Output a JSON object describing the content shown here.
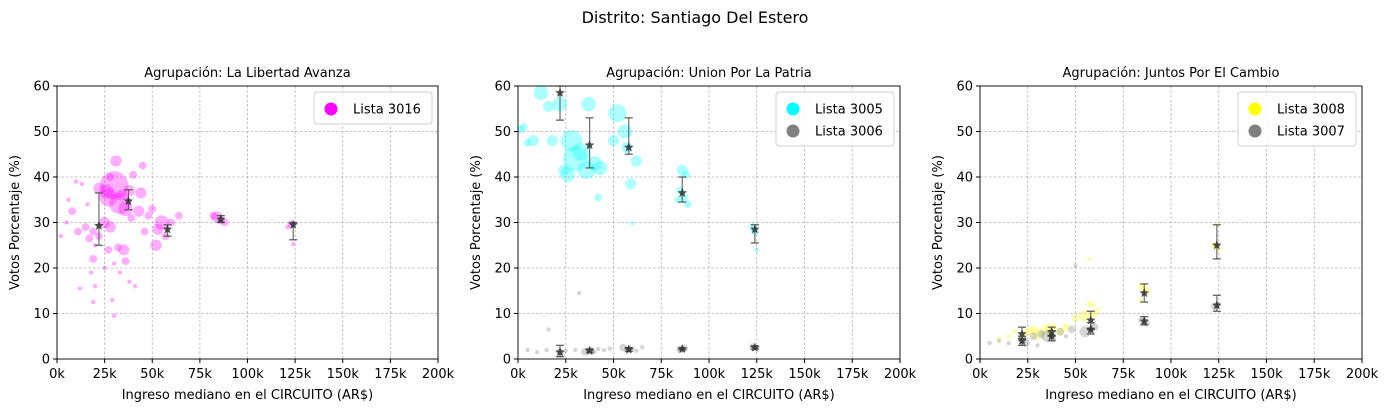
{
  "suptitle": "Distrito: Santiago Del Estero",
  "chart_data": [
    {
      "type": "scatter",
      "title": "Agrupación: La Libertad Avanza",
      "xlabel": "Ingreso mediano en el CIRCUITO (AR$)",
      "ylabel": "Votos Porcentaje (%)",
      "xlim": [
        0,
        200000
      ],
      "ylim": [
        0,
        60
      ],
      "xticks": [
        0,
        25000,
        50000,
        75000,
        100000,
        125000,
        150000,
        175000,
        200000
      ],
      "xticklabels": [
        "0k",
        "25k",
        "50k",
        "75k",
        "100k",
        "125k",
        "150k",
        "175k",
        "200k"
      ],
      "yticks": [
        0,
        10,
        20,
        30,
        40,
        50,
        60
      ],
      "grid": true,
      "legend_position": "top-right",
      "series": [
        {
          "name": "Lista 3016",
          "color": "#ff00ff",
          "points": [
            [
              22000,
              37.5,
              3
            ],
            [
              26000,
              36.8,
              4
            ],
            [
              30000,
              38.2,
              8
            ],
            [
              27000,
              35.5,
              5
            ],
            [
              33000,
              34.2,
              6
            ],
            [
              31000,
              43.5,
              3
            ],
            [
              45000,
              42.5,
              2
            ],
            [
              40000,
              40.5,
              2
            ],
            [
              28000,
              40,
              2
            ],
            [
              34000,
              36,
              3
            ],
            [
              38000,
              37,
              3
            ],
            [
              36000,
              33,
              4
            ],
            [
              44000,
              36.5,
              3
            ],
            [
              43000,
              32.5,
              3
            ],
            [
              39000,
              31,
              2
            ],
            [
              50000,
              33,
              2
            ],
            [
              48000,
              31.5,
              2
            ],
            [
              55000,
              30,
              4
            ],
            [
              53000,
              28.5,
              3
            ],
            [
              60000,
              30,
              2
            ],
            [
              64000,
              31.5,
              2
            ],
            [
              52000,
              25,
              3
            ],
            [
              57000,
              27,
              2
            ],
            [
              46000,
              28,
              2
            ],
            [
              25000,
              30,
              3
            ],
            [
              28000,
              29,
              3
            ],
            [
              19000,
              28,
              2
            ],
            [
              15000,
              29,
              2
            ],
            [
              22000,
              27,
              2
            ],
            [
              17000,
              26.5,
              2
            ],
            [
              20000,
              25,
              1
            ],
            [
              19000,
              22,
              2
            ],
            [
              27000,
              24,
              2
            ],
            [
              32000,
              24.5,
              2
            ],
            [
              35000,
              24,
              3
            ],
            [
              36000,
              21.5,
              2
            ],
            [
              33000,
              19,
              1
            ],
            [
              30000,
              21,
              1
            ],
            [
              25000,
              20,
              1
            ],
            [
              18000,
              19,
              1
            ],
            [
              20000,
              16,
              1
            ],
            [
              12000,
              15.5,
              1
            ],
            [
              19000,
              12.5,
              1
            ],
            [
              29000,
              13,
              1
            ],
            [
              30000,
              9.5,
              1
            ],
            [
              38000,
              17,
              1
            ],
            [
              41000,
              16,
              1
            ],
            [
              16000,
              34,
              1
            ],
            [
              10000,
              39,
              1
            ],
            [
              13000,
              38.5,
              1
            ],
            [
              6000,
              35,
              1
            ],
            [
              5000,
              30,
              1
            ],
            [
              8000,
              32.5,
              2
            ],
            [
              2000,
              27,
              1
            ],
            [
              11000,
              28,
              2
            ],
            [
              84000,
              31.2,
              3
            ],
            [
              86000,
              30.5,
              2
            ],
            [
              88000,
              30,
              2
            ],
            [
              82000,
              31.5,
              2
            ],
            [
              123000,
              29.6,
              2
            ],
            [
              124000,
              25.3,
              1
            ],
            [
              121000,
              29,
              1
            ]
          ]
        }
      ],
      "summary": [
        {
          "x": 22000,
          "y": 29.3,
          "lo": 25,
          "hi": 36.5
        },
        {
          "x": 37500,
          "y": 34.7,
          "lo": 32.8,
          "hi": 37.2
        },
        {
          "x": 58000,
          "y": 28.5,
          "lo": 27,
          "hi": 29.5
        },
        {
          "x": 86000,
          "y": 30.7,
          "lo": 30,
          "hi": 31.5
        },
        {
          "x": 124000,
          "y": 29.5,
          "lo": 26.2,
          "hi": 30
        }
      ]
    },
    {
      "type": "scatter",
      "title": "Agrupación: Union Por La Patria",
      "xlabel": "Ingreso mediano en el CIRCUITO (AR$)",
      "ylabel": "Votos Porcentaje (%)",
      "xlim": [
        0,
        200000
      ],
      "ylim": [
        0,
        60
      ],
      "xticks": [
        0,
        25000,
        50000,
        75000,
        100000,
        125000,
        150000,
        175000,
        200000
      ],
      "xticklabels": [
        "0k",
        "25k",
        "50k",
        "75k",
        "100k",
        "125k",
        "150k",
        "175k",
        "200k"
      ],
      "yticks": [
        0,
        10,
        20,
        30,
        40,
        50,
        60
      ],
      "grid": true,
      "legend_position": "top-right",
      "series": [
        {
          "name": "Lista 3005",
          "color": "#00ffff",
          "points": [
            [
              12000,
              58.5,
              4
            ],
            [
              16000,
              55.5,
              3
            ],
            [
              22000,
              56,
              4
            ],
            [
              28000,
              48,
              6
            ],
            [
              30000,
              44,
              7
            ],
            [
              33000,
              45.5,
              5
            ],
            [
              36000,
              41.5,
              5
            ],
            [
              40000,
              43,
              4
            ],
            [
              26000,
              40.5,
              4
            ],
            [
              24000,
              41.5,
              3
            ],
            [
              43000,
              42,
              4
            ],
            [
              37000,
              56,
              4
            ],
            [
              52000,
              54,
              5
            ],
            [
              56000,
              50,
              4
            ],
            [
              50000,
              48,
              3
            ],
            [
              57000,
              46.5,
              3
            ],
            [
              62000,
              43.5,
              3
            ],
            [
              59000,
              38.5,
              3
            ],
            [
              8000,
              48,
              3
            ],
            [
              5000,
              47.5,
              2
            ],
            [
              3000,
              51,
              2
            ],
            [
              1000,
              50.5,
              2
            ],
            [
              18000,
              48,
              3
            ],
            [
              42000,
              35.5,
              2
            ],
            [
              85000,
              37,
              2
            ],
            [
              87000,
              35.5,
              2
            ],
            [
              86000,
              41.5,
              3
            ],
            [
              89000,
              34,
              2
            ],
            [
              84000,
              35,
              2
            ],
            [
              88000,
              40.5,
              2
            ],
            [
              123000,
              29,
              2
            ],
            [
              124000,
              28,
              2
            ],
            [
              125000,
              24,
              1
            ],
            [
              60000,
              29.8,
              1
            ]
          ]
        },
        {
          "name": "Lista 3006",
          "color": "#808080",
          "points": [
            [
              22000,
              1.5,
              2
            ],
            [
              25000,
              1.8,
              1
            ],
            [
              30000,
              2,
              1
            ],
            [
              35000,
              1.6,
              2
            ],
            [
              38000,
              1.8,
              2
            ],
            [
              40000,
              1.5,
              1
            ],
            [
              42000,
              2.2,
              1
            ],
            [
              45000,
              1.9,
              1
            ],
            [
              48000,
              2.3,
              1
            ],
            [
              55000,
              2.5,
              2
            ],
            [
              58000,
              2.1,
              2
            ],
            [
              60000,
              2.2,
              1
            ],
            [
              62000,
              1.8,
              1
            ],
            [
              65000,
              2.6,
              1
            ],
            [
              85000,
              2.1,
              2
            ],
            [
              87000,
              2.3,
              2
            ],
            [
              123000,
              2.6,
              2
            ],
            [
              125000,
              2.4,
              1
            ],
            [
              15000,
              2,
              1
            ],
            [
              10000,
              1.5,
              1
            ],
            [
              5000,
              2,
              1
            ],
            [
              32000,
              14.5,
              1
            ],
            [
              16000,
              6.5,
              1
            ]
          ]
        }
      ],
      "summary": [
        {
          "x": 22000,
          "y": 58.5,
          "lo": 52.5,
          "hi": 60
        },
        {
          "x": 37500,
          "y": 47,
          "lo": 42,
          "hi": 53
        },
        {
          "x": 58000,
          "y": 46.5,
          "lo": 45,
          "hi": 53
        },
        {
          "x": 86000,
          "y": 36.5,
          "lo": 34.5,
          "hi": 40
        },
        {
          "x": 124000,
          "y": 28.5,
          "lo": 25.5,
          "hi": 29.5
        },
        {
          "x": 22000,
          "y": 1.5,
          "lo": 0.5,
          "hi": 3
        },
        {
          "x": 37500,
          "y": 1.8,
          "lo": 1.5,
          "hi": 2.2
        },
        {
          "x": 58000,
          "y": 2.1,
          "lo": 1.7,
          "hi": 2.5
        },
        {
          "x": 86000,
          "y": 2.2,
          "lo": 2,
          "hi": 2.4
        },
        {
          "x": 124000,
          "y": 2.5,
          "lo": 2.2,
          "hi": 2.9
        }
      ]
    },
    {
      "type": "scatter",
      "title": "Agrupación: Juntos Por El Cambio",
      "xlabel": "Ingreso mediano en el CIRCUITO (AR$)",
      "ylabel": "Votos Porcentaje (%)",
      "xlim": [
        0,
        200000
      ],
      "ylim": [
        0,
        60
      ],
      "xticks": [
        0,
        25000,
        50000,
        75000,
        100000,
        125000,
        150000,
        175000,
        200000
      ],
      "xticklabels": [
        "0k",
        "25k",
        "50k",
        "75k",
        "100k",
        "125k",
        "150k",
        "175k",
        "200k"
      ],
      "yticks": [
        0,
        10,
        20,
        30,
        40,
        50,
        60
      ],
      "grid": true,
      "legend_position": "top-right",
      "series": [
        {
          "name": "Lista 3008",
          "color": "#ffff00",
          "points": [
            [
              22000,
              5,
              2
            ],
            [
              25000,
              6,
              2
            ],
            [
              28000,
              6.5,
              2
            ],
            [
              30000,
              5.5,
              3
            ],
            [
              35000,
              6.5,
              3
            ],
            [
              38000,
              7,
              2
            ],
            [
              42000,
              6,
              2
            ],
            [
              45000,
              7,
              2
            ],
            [
              50000,
              9,
              2
            ],
            [
              55000,
              9.5,
              3
            ],
            [
              58000,
              12,
              2
            ],
            [
              60000,
              10,
              2
            ],
            [
              62000,
              11,
              1
            ],
            [
              15000,
              5,
              1
            ],
            [
              10000,
              4.5,
              1
            ],
            [
              18000,
              6,
              1
            ],
            [
              85000,
              16,
              2
            ],
            [
              87000,
              15,
              2
            ],
            [
              84000,
              13,
              1
            ],
            [
              123000,
              25,
              2
            ],
            [
              125000,
              24,
              1
            ],
            [
              124000,
              29.5,
              1
            ],
            [
              57000,
              22,
              1
            ]
          ]
        },
        {
          "name": "Lista 3007",
          "color": "#808080",
          "points": [
            [
              22000,
              4,
              2
            ],
            [
              24000,
              3.5,
              2
            ],
            [
              28000,
              5,
              2
            ],
            [
              32000,
              5.5,
              2
            ],
            [
              35000,
              5,
              3
            ],
            [
              38000,
              4.5,
              2
            ],
            [
              42000,
              6,
              2
            ],
            [
              48000,
              6.5,
              2
            ],
            [
              55000,
              6,
              3
            ],
            [
              58000,
              6.5,
              2
            ],
            [
              60000,
              7,
              2
            ],
            [
              15000,
              3.5,
              1
            ],
            [
              10000,
              4,
              1
            ],
            [
              5000,
              3.5,
              1
            ],
            [
              85000,
              8.5,
              2
            ],
            [
              87000,
              8,
              2
            ],
            [
              123000,
              11.5,
              2
            ],
            [
              125000,
              12,
              1
            ],
            [
              50000,
              20.5,
              1
            ],
            [
              30000,
              3,
              1
            ],
            [
              45000,
              5,
              1
            ]
          ]
        }
      ],
      "summary": [
        {
          "x": 22000,
          "y": 5.5,
          "lo": 4.5,
          "hi": 7
        },
        {
          "x": 37500,
          "y": 6,
          "lo": 5,
          "hi": 7
        },
        {
          "x": 58000,
          "y": 8.5,
          "lo": 6.5,
          "hi": 10.5
        },
        {
          "x": 86000,
          "y": 14.5,
          "lo": 12.5,
          "hi": 16.5
        },
        {
          "x": 124000,
          "y": 25,
          "lo": 22,
          "hi": 29.5
        },
        {
          "x": 22000,
          "y": 4,
          "lo": 3,
          "hi": 5
        },
        {
          "x": 37500,
          "y": 5,
          "lo": 4,
          "hi": 6
        },
        {
          "x": 58000,
          "y": 6.5,
          "lo": 5.5,
          "hi": 8
        },
        {
          "x": 86000,
          "y": 8.3,
          "lo": 7.5,
          "hi": 9.3
        },
        {
          "x": 124000,
          "y": 11.8,
          "lo": 10.5,
          "hi": 14
        }
      ]
    }
  ]
}
